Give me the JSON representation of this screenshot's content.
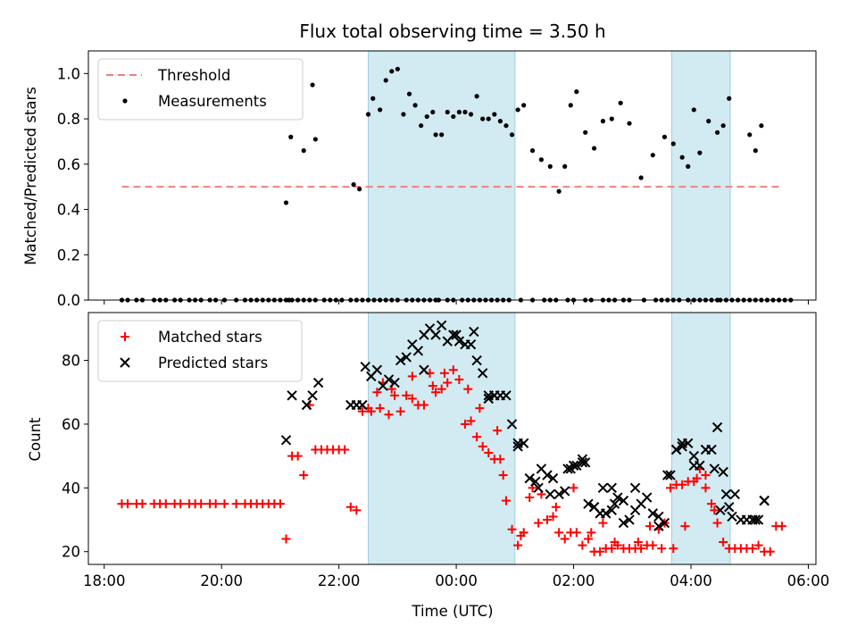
{
  "chart_data": {
    "title": "Flux total observing time = 3.50 h",
    "xlabel": "Time (UTC)",
    "x_ticks": [
      "18:00",
      "20:00",
      "22:00",
      "00:00",
      "02:00",
      "04:00",
      "06:00"
    ],
    "xlim_hours": [
      17.73,
      30.13
    ],
    "shaded_intervals_hours": [
      [
        22.5,
        25.0
      ],
      [
        27.67,
        28.67
      ]
    ],
    "shade_color": "#add8e6",
    "panels": [
      {
        "type": "scatter",
        "ylabel": "Matched/Predicted stars",
        "ylim": [
          0,
          1.1
        ],
        "y_ticks": [
          "0.0",
          "0.2",
          "0.4",
          "0.6",
          "0.8",
          "1.0"
        ],
        "y_tick_values": [
          0,
          0.2,
          0.4,
          0.6,
          0.8,
          1.0
        ],
        "legend": {
          "position": "top-left"
        },
        "threshold": {
          "name": "Threshold",
          "value": 0.5,
          "x_range": [
            18.3,
            29.5
          ],
          "color": "#f08080"
        },
        "series": [
          {
            "name": "Measurements",
            "color": "#000000",
            "marker": "dot",
            "x": [
              18.3,
              18.4,
              18.55,
              18.65,
              18.85,
              18.95,
              19.05,
              19.2,
              19.3,
              19.45,
              19.55,
              19.65,
              19.8,
              19.9,
              20.05,
              20.25,
              20.4,
              20.5,
              20.6,
              20.7,
              20.8,
              20.9,
              21.0,
              21.1,
              21.15,
              21.2,
              21.3,
              21.4,
              21.5,
              21.6,
              21.75,
              21.85,
              21.95,
              22.05,
              22.2,
              22.3,
              22.4,
              22.5,
              22.6,
              22.7,
              22.8,
              22.9,
              23.0,
              23.15,
              23.25,
              23.35,
              23.45,
              23.55,
              23.65,
              23.7,
              23.85,
              23.95,
              24.1,
              24.2,
              24.3,
              24.4,
              24.5,
              24.6,
              24.7,
              24.8,
              24.9,
              25.1,
              25.3,
              25.5,
              25.6,
              25.7,
              25.9,
              26.0,
              26.2,
              26.3,
              26.5,
              26.6,
              26.7,
              26.85,
              26.95,
              27.2,
              27.4,
              27.5,
              27.6,
              27.7,
              27.8,
              27.95,
              28.05,
              28.15,
              28.25,
              28.35,
              28.45,
              28.5,
              28.6,
              28.7,
              28.8,
              28.9,
              29.0,
              29.1,
              29.2,
              29.3,
              29.4,
              29.5,
              29.6,
              29.7
            ],
            "y": [
              0,
              0,
              0,
              0,
              0,
              0,
              0,
              0,
              0,
              0,
              0,
              0,
              0,
              0,
              0,
              0,
              0,
              0,
              0,
              0,
              0,
              0,
              0,
              0,
              0,
              0,
              0,
              0,
              0,
              0,
              0,
              0,
              0,
              0,
              0,
              0,
              0,
              0,
              0,
              0,
              0,
              0,
              0,
              0,
              0,
              0,
              0,
              0,
              0,
              0,
              0,
              0,
              0,
              0,
              0,
              0,
              0,
              0,
              0,
              0,
              0,
              0,
              0,
              0,
              0,
              0,
              0,
              0,
              0,
              0,
              0,
              0,
              0,
              0,
              0,
              0,
              0,
              0,
              0,
              0,
              0,
              0,
              0,
              0,
              0,
              0,
              0,
              0,
              0,
              0,
              0,
              0,
              0,
              0,
              0,
              0,
              0,
              0,
              0,
              0
            ],
            "extra_x": [
              21.1,
              21.18,
              21.4,
              21.55,
              21.6,
              22.25,
              22.35,
              22.5,
              22.58,
              22.7,
              22.8,
              22.9,
              23.0,
              23.1,
              23.2,
              23.3,
              23.4,
              23.5,
              23.6,
              23.65,
              23.75,
              23.85,
              23.95,
              24.05,
              24.15,
              24.25,
              24.35,
              24.45,
              24.55,
              24.65,
              24.75,
              24.85,
              24.95,
              25.05,
              25.15,
              25.3,
              25.45,
              25.6,
              25.75,
              25.85,
              25.95,
              26.05,
              26.2,
              26.35,
              26.5,
              26.65,
              26.8,
              26.95,
              27.15,
              27.35,
              27.55,
              27.7,
              27.85,
              27.95,
              28.05,
              28.15,
              28.3,
              28.45,
              28.55,
              28.65,
              29.0,
              29.1,
              29.2
            ],
            "extra_y": [
              0.43,
              0.72,
              0.66,
              0.95,
              0.71,
              0.51,
              0.49,
              0.82,
              0.89,
              0.84,
              0.97,
              1.01,
              1.02,
              0.82,
              0.91,
              0.86,
              0.77,
              0.81,
              0.83,
              0.73,
              0.73,
              0.83,
              0.81,
              0.83,
              0.83,
              0.82,
              0.9,
              0.8,
              0.8,
              0.82,
              0.79,
              0.77,
              0.73,
              0.84,
              0.86,
              0.66,
              0.62,
              0.59,
              0.48,
              0.59,
              0.86,
              0.92,
              0.74,
              0.67,
              0.79,
              0.8,
              0.87,
              0.78,
              0.54,
              0.64,
              0.72,
              0.69,
              0.63,
              0.59,
              0.84,
              0.65,
              0.79,
              0.74,
              0.77,
              0.89,
              0.73,
              0.66,
              0.77
            ]
          }
        ]
      },
      {
        "type": "scatter",
        "ylabel": "Count",
        "ylim": [
          16,
          95
        ],
        "y_ticks": [
          "20",
          "40",
          "60",
          "80"
        ],
        "y_tick_values": [
          20,
          40,
          60,
          80
        ],
        "legend": {
          "position": "top-left"
        },
        "series": [
          {
            "name": "Matched stars",
            "color": "#ff0000",
            "marker": "plus",
            "x": [
              18.3,
              18.4,
              18.55,
              18.65,
              18.85,
              18.95,
              19.05,
              19.2,
              19.3,
              19.45,
              19.55,
              19.65,
              19.8,
              19.9,
              20.05,
              20.25,
              20.4,
              20.5,
              20.6,
              20.7,
              20.8,
              20.9,
              21.0,
              21.1,
              21.2,
              21.3,
              21.4,
              21.5,
              21.6,
              21.7,
              21.8,
              21.9,
              22.0,
              22.1,
              22.2,
              22.3,
              22.4,
              22.5,
              22.55,
              22.65,
              22.75,
              22.85,
              22.95,
              23.05,
              23.15,
              23.25,
              23.35,
              23.45,
              23.55,
              23.65,
              23.75,
              23.85,
              23.95,
              24.05,
              24.15,
              24.25,
              24.35,
              24.45,
              24.55,
              24.65,
              24.75,
              24.8,
              24.85,
              24.95,
              25.05,
              25.15,
              25.25,
              25.4,
              25.55,
              25.65,
              25.75,
              25.85,
              25.95,
              26.05,
              26.15,
              26.25,
              26.35,
              26.45,
              26.55,
              26.65,
              26.75,
              26.85,
              26.95,
              27.05,
              27.15,
              27.25,
              27.35,
              27.45,
              27.55,
              27.65,
              27.75,
              27.85,
              27.95,
              28.05,
              28.15,
              28.25,
              28.35,
              28.45,
              28.55,
              28.65,
              28.75,
              28.85,
              28.95,
              29.05,
              29.15,
              29.25,
              29.35,
              29.45,
              29.55
            ],
            "y": [
              35,
              35,
              35,
              35,
              35,
              35,
              35,
              35,
              35,
              35,
              35,
              35,
              35,
              35,
              35,
              35,
              35,
              35,
              35,
              35,
              35,
              35,
              35,
              24,
              50,
              50,
              44,
              66,
              52,
              52,
              52,
              52,
              52,
              52,
              34,
              33,
              64,
              65,
              64,
              70,
              73,
              63,
              69,
              64,
              69,
              68,
              66,
              66,
              76,
              70,
              71,
              73,
              77,
              74,
              60,
              61,
              56,
              53,
              51,
              49,
              49,
              44,
              36,
              27,
              22,
              26,
              37,
              29,
              30,
              31,
              26,
              24,
              26,
              26,
              22,
              24,
              20,
              20,
              21,
              21,
              22,
              21,
              21,
              21,
              21,
              22,
              22,
              27,
              29,
              40,
              41,
              41,
              42,
              42,
              46,
              40,
              35,
              29,
              23,
              21,
              21,
              21,
              21,
              21,
              22,
              20,
              20,
              28,
              28
            ],
            "extra_x": [
              22.7,
              22.9,
              23.25,
              23.6,
              23.8,
              24.2,
              24.4,
              24.7,
              25.1,
              25.3,
              25.45,
              25.7,
              26.0,
              26.3,
              26.5,
              26.7,
              26.95,
              27.1,
              27.3,
              27.5,
              27.7,
              27.9,
              28.1,
              28.25,
              28.4
            ],
            "extra_y": [
              65,
              71,
              75,
              72,
              76,
              71,
              65,
              58,
              25,
              40,
              38,
              34,
              40,
              26,
              29,
              23,
              21,
              23,
              28,
              21,
              21,
              28,
              43,
              44,
              33
            ]
          },
          {
            "name": "Predicted stars",
            "color": "#000000",
            "marker": "x",
            "x": [
              21.1,
              21.2,
              21.45,
              21.55,
              21.65,
              22.2,
              22.3,
              22.45,
              22.55,
              22.65,
              22.75,
              22.85,
              22.95,
              23.05,
              23.15,
              23.25,
              23.35,
              23.45,
              23.55,
              23.65,
              23.75,
              23.85,
              23.95,
              24.05,
              24.15,
              24.25,
              24.35,
              24.45,
              24.55,
              24.65,
              24.75,
              24.85,
              24.95,
              25.05,
              25.15,
              25.25,
              25.35,
              25.45,
              25.55,
              25.65,
              25.75,
              25.85,
              25.95,
              26.05,
              26.15,
              26.25,
              26.35,
              26.45,
              26.55,
              26.65,
              26.75,
              26.85,
              26.95,
              27.05,
              27.15,
              27.25,
              27.35,
              27.45,
              27.55,
              27.65,
              27.75,
              27.85,
              27.95,
              28.05,
              28.15,
              28.25,
              28.35,
              28.45,
              28.55,
              28.65,
              28.75,
              28.85,
              28.95,
              29.05,
              29.15,
              29.25
            ],
            "y": [
              55,
              69,
              66,
              69,
              73,
              66,
              66,
              78,
              75,
              77,
              72,
              74,
              73,
              80,
              81,
              85,
              83,
              88,
              90,
              88,
              91,
              86,
              88,
              86,
              85,
              85,
              80,
              76,
              68,
              69,
              69,
              69,
              60,
              53,
              54,
              43,
              42,
              46,
              44,
              43,
              38,
              39,
              46,
              47,
              48,
              35,
              34,
              32,
              32,
              40,
              37,
              29,
              30,
              33,
              35,
              37,
              32,
              28,
              29,
              44,
              52,
              53,
              54,
              50,
              47,
              52,
              52,
              59,
              45,
              34,
              38,
              30,
              30,
              30,
              30,
              36
            ],
            "extra_x": [
              22.4,
              23.45,
              24.0,
              24.3,
              24.55,
              24.65,
              25.05,
              25.4,
              25.6,
              25.9,
              26.0,
              26.15,
              26.2,
              26.35,
              26.5,
              26.65,
              26.7,
              26.85,
              27.05,
              27.45,
              27.6,
              27.75,
              27.85,
              28.05,
              28.4,
              28.5,
              28.6,
              28.7,
              29.1,
              29.25
            ],
            "extra_y": [
              66,
              77,
              88,
              89,
              69,
              69,
              54,
              40,
              38,
              46,
              47,
              49,
              48,
              34,
              40,
              33,
              35,
              36,
              40,
              31,
              44,
              52,
              54,
              47,
              46,
              33,
              38,
              31,
              30,
              36
            ]
          }
        ]
      }
    ]
  }
}
